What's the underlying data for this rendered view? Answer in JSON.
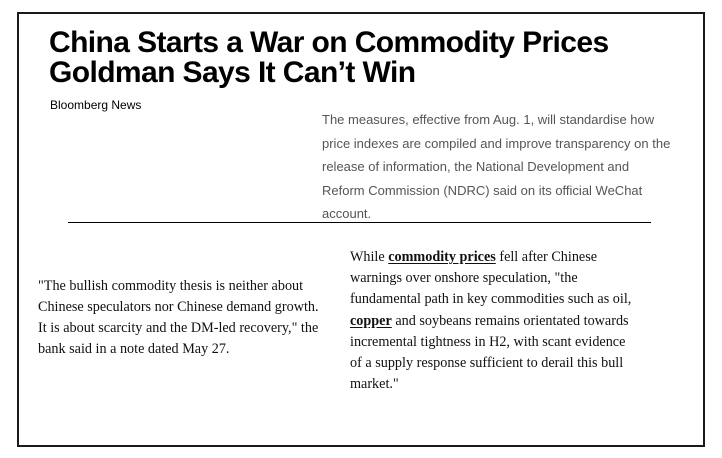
{
  "article": {
    "headline_lines": [
      "China Starts a War on Commodity Prices",
      "Goldman Says It Can’t Win"
    ],
    "byline": "Bloomberg News",
    "excerpt_lines": [
      "The measures, effective from Aug. 1, will standardise how",
      "price indexes are compiled and improve transparency on the",
      "release of information, the National Development and",
      "Reform Commission (NDRC) said on its official WeChat",
      "account."
    ]
  },
  "quote_left": {
    "lines": [
      "\"The bullish commodity thesis is neither about",
      "Chinese speculators nor Chinese demand growth.",
      "It is about scarcity and the DM-led recovery,\" the",
      "bank said in a note dated May 27."
    ]
  },
  "quote_right": {
    "line1_pre": "While ",
    "link_commodity_prices": "commodity prices",
    "line1_post": " fell after Chinese",
    "line2": "warnings over onshore speculation, \"the",
    "line3": "fundamental path in key commodities such as oil,",
    "link_copper": "copper",
    "line4_post": " and soybeans remains orientated towards",
    "line5": "incremental tightness in H2, with scant evidence",
    "line6": "of a supply response sufficient to derail this bull",
    "line7": "market.\""
  }
}
